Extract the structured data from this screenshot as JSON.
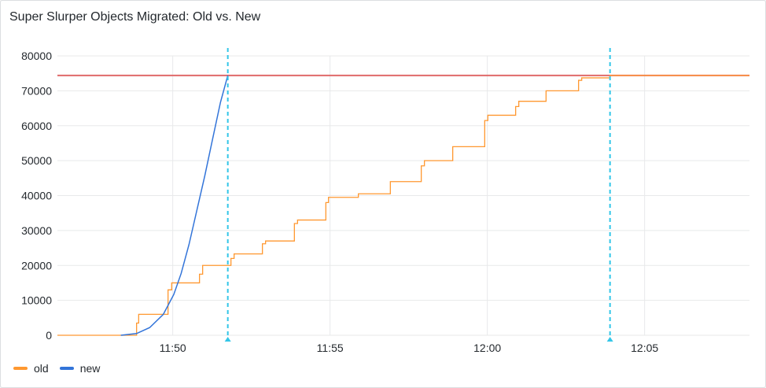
{
  "panel": {
    "title": "Super Slurper Objects Migrated: Old vs. New"
  },
  "chart_data": {
    "type": "line",
    "title": "Super Slurper Objects Migrated: Old vs. New",
    "xlabel": "",
    "ylabel": "",
    "xlim": [
      "11:46:20",
      "12:08:20"
    ],
    "ylim": [
      0,
      80000
    ],
    "x_ticks": [
      "11:50",
      "11:55",
      "12:00",
      "12:05"
    ],
    "y_ticks": [
      "0",
      "10000",
      "20000",
      "30000",
      "40000",
      "50000",
      "60000",
      "70000",
      "80000"
    ],
    "grid": true,
    "legend": "bottom-left",
    "threshold": {
      "value": 74400,
      "color": "#e06a6a"
    },
    "annotations": [
      {
        "time": "11:51:45",
        "color": "#33c6e8"
      },
      {
        "time": "12:03:54",
        "color": "#33c6e8"
      }
    ],
    "series": [
      {
        "name": "old",
        "color": "#ff9830",
        "step": true,
        "points": [
          [
            "11:46:20",
            0
          ],
          [
            "11:48:51",
            3500
          ],
          [
            "11:48:55",
            6000
          ],
          [
            "11:49:51",
            13000
          ],
          [
            "11:49:58",
            15000
          ],
          [
            "11:50:51",
            17500
          ],
          [
            "11:50:57",
            20000
          ],
          [
            "11:51:51",
            22000
          ],
          [
            "11:51:57",
            23300
          ],
          [
            "11:52:51",
            26200
          ],
          [
            "11:52:57",
            27000
          ],
          [
            "11:53:52",
            32000
          ],
          [
            "11:53:58",
            33000
          ],
          [
            "11:54:52",
            38000
          ],
          [
            "11:54:57",
            39500
          ],
          [
            "11:55:54",
            40500
          ],
          [
            "11:56:55",
            44000
          ],
          [
            "11:57:54",
            48500
          ],
          [
            "11:58:00",
            50000
          ],
          [
            "11:58:54",
            54000
          ],
          [
            "11:59:55",
            61500
          ],
          [
            "12:00:01",
            63000
          ],
          [
            "12:00:54",
            65500
          ],
          [
            "12:01:00",
            67000
          ],
          [
            "12:01:52",
            70000
          ],
          [
            "12:02:54",
            73000
          ],
          [
            "12:03:00",
            73700
          ],
          [
            "12:03:54",
            74400
          ],
          [
            "12:08:20",
            74400
          ]
        ]
      },
      {
        "name": "new",
        "color": "#3274d9",
        "step": false,
        "points": [
          [
            "11:48:21",
            0
          ],
          [
            "11:48:51",
            500
          ],
          [
            "11:49:16",
            2200
          ],
          [
            "11:49:42",
            6000
          ],
          [
            "11:50:02",
            11700
          ],
          [
            "11:50:16",
            17700
          ],
          [
            "11:50:31",
            26000
          ],
          [
            "11:50:46",
            35800
          ],
          [
            "11:51:01",
            45600
          ],
          [
            "11:51:16",
            56200
          ],
          [
            "11:51:31",
            66700
          ],
          [
            "11:51:45",
            74400
          ]
        ]
      }
    ]
  }
}
